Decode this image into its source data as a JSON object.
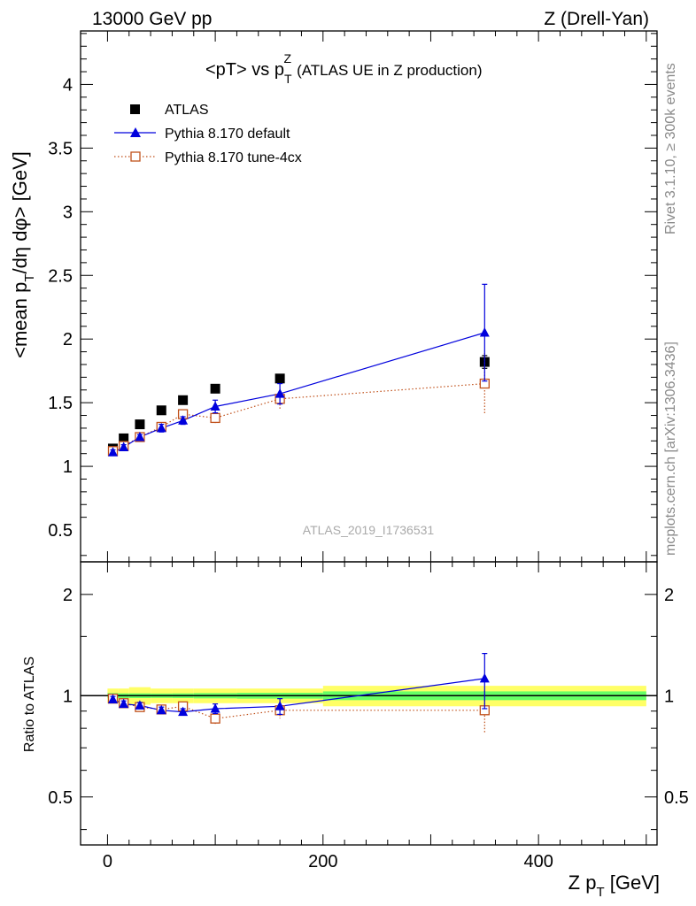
{
  "header": {
    "energy_label": "13000 GeV pp",
    "process_label": "Z (Drell-Yan)"
  },
  "side_labels": {
    "rivet": "Rivet 3.1.10, ≥ 300k events",
    "mcplots": "mcplots.cern.ch [arXiv:1306.3436]"
  },
  "watermark": "ATLAS_2019_I1736531",
  "colors": {
    "atlas": "#000000",
    "default": "#0000dd",
    "tune": "#c0501a",
    "band_inner": "#66ff66",
    "band_outer": "#ffff66"
  },
  "chart_data": [
    {
      "type": "scatter",
      "title": "<pT> vs pTZ (ATLAS UE in Z production)",
      "title_parts": {
        "main": "<pT> vs p",
        "sub": "T",
        "sup": "Z",
        "paren": "(ATLAS UE in Z production)"
      },
      "xlabel": "Z pT [GeV]",
      "ylabel": "<mean pT/dη dφ> [GeV]",
      "ylabel_parts": {
        "main": "<mean p",
        "sub": "T",
        "rest": "/dη dφ> [GeV]"
      },
      "xlim": [
        -25,
        510
      ],
      "ylim": [
        0.25,
        4.42
      ],
      "y_ticks": [
        0.5,
        1,
        1.5,
        2,
        2.5,
        3,
        3.5,
        4
      ],
      "y_tick_labels": [
        "0.5",
        "1",
        "1.5",
        "2",
        "2.5",
        "3",
        "3.5",
        "4"
      ],
      "legend_position": "top-left",
      "series": [
        {
          "name": "ATLAS",
          "marker": "filled-square",
          "x": [
            5,
            15,
            30,
            50,
            70,
            100,
            160,
            350
          ],
          "y": [
            1.14,
            1.22,
            1.33,
            1.44,
            1.52,
            1.61,
            1.69,
            1.82
          ],
          "err": [
            0.02,
            0.02,
            0.02,
            0.02,
            0.02,
            0.03,
            0.03,
            0.05
          ]
        },
        {
          "name": "Pythia 8.170 default",
          "marker": "filled-triangle",
          "line": "solid",
          "x": [
            5,
            15,
            30,
            50,
            70,
            100,
            160,
            350
          ],
          "y": [
            1.11,
            1.15,
            1.23,
            1.3,
            1.36,
            1.47,
            1.57,
            2.05
          ],
          "err": [
            0.02,
            0.02,
            0.02,
            0.03,
            0.03,
            0.05,
            0.08,
            0.38
          ]
        },
        {
          "name": "Pythia 8.170 tune-4cx",
          "marker": "open-square",
          "line": "dotted",
          "x": [
            5,
            15,
            30,
            50,
            70,
            100,
            160,
            350
          ],
          "y": [
            1.12,
            1.16,
            1.23,
            1.31,
            1.41,
            1.38,
            1.53,
            1.65
          ],
          "err": [
            0.02,
            0.02,
            0.02,
            0.03,
            0.03,
            0.04,
            0.08,
            0.24
          ]
        }
      ]
    },
    {
      "type": "scatter",
      "ylabel": "Ratio to ATLAS",
      "xlabel": "Z pT [GeV]",
      "xlim": [
        -25,
        510
      ],
      "ylim": [
        0.36,
        2.5
      ],
      "y_scale": "log",
      "y_ticks": [
        0.5,
        1,
        2
      ],
      "y_tick_labels": [
        "0.5",
        "1",
        "2"
      ],
      "x_ticks": [
        0,
        200,
        400
      ],
      "x_tick_labels": [
        "0",
        "200",
        "400"
      ],
      "reference_band": [
        {
          "x0": 0,
          "x1": 10,
          "inner": 0.018,
          "outer": 0.05
        },
        {
          "x0": 10,
          "x1": 20,
          "inner": 0.016,
          "outer": 0.05
        },
        {
          "x0": 20,
          "x1": 40,
          "inner": 0.016,
          "outer": 0.06
        },
        {
          "x0": 40,
          "x1": 60,
          "inner": 0.015,
          "outer": 0.05
        },
        {
          "x0": 60,
          "x1": 80,
          "inner": 0.016,
          "outer": 0.05
        },
        {
          "x0": 80,
          "x1": 120,
          "inner": 0.018,
          "outer": 0.05
        },
        {
          "x0": 120,
          "x1": 200,
          "inner": 0.02,
          "outer": 0.05
        },
        {
          "x0": 200,
          "x1": 500,
          "inner": 0.03,
          "outer": 0.07
        }
      ],
      "series": [
        {
          "name": "Pythia 8.170 default",
          "x": [
            5,
            15,
            30,
            50,
            70,
            100,
            160,
            350
          ],
          "y": [
            0.975,
            0.945,
            0.935,
            0.905,
            0.895,
            0.915,
            0.93,
            1.125
          ],
          "err": [
            0.02,
            0.02,
            0.02,
            0.02,
            0.02,
            0.03,
            0.05,
            0.21
          ]
        },
        {
          "name": "Pythia 8.170 tune-4cx",
          "x": [
            5,
            15,
            30,
            50,
            70,
            100,
            160,
            350
          ],
          "y": [
            0.98,
            0.95,
            0.925,
            0.91,
            0.93,
            0.855,
            0.905,
            0.905
          ],
          "err": [
            0.02,
            0.02,
            0.02,
            0.02,
            0.02,
            0.03,
            0.05,
            0.13
          ]
        }
      ]
    }
  ]
}
